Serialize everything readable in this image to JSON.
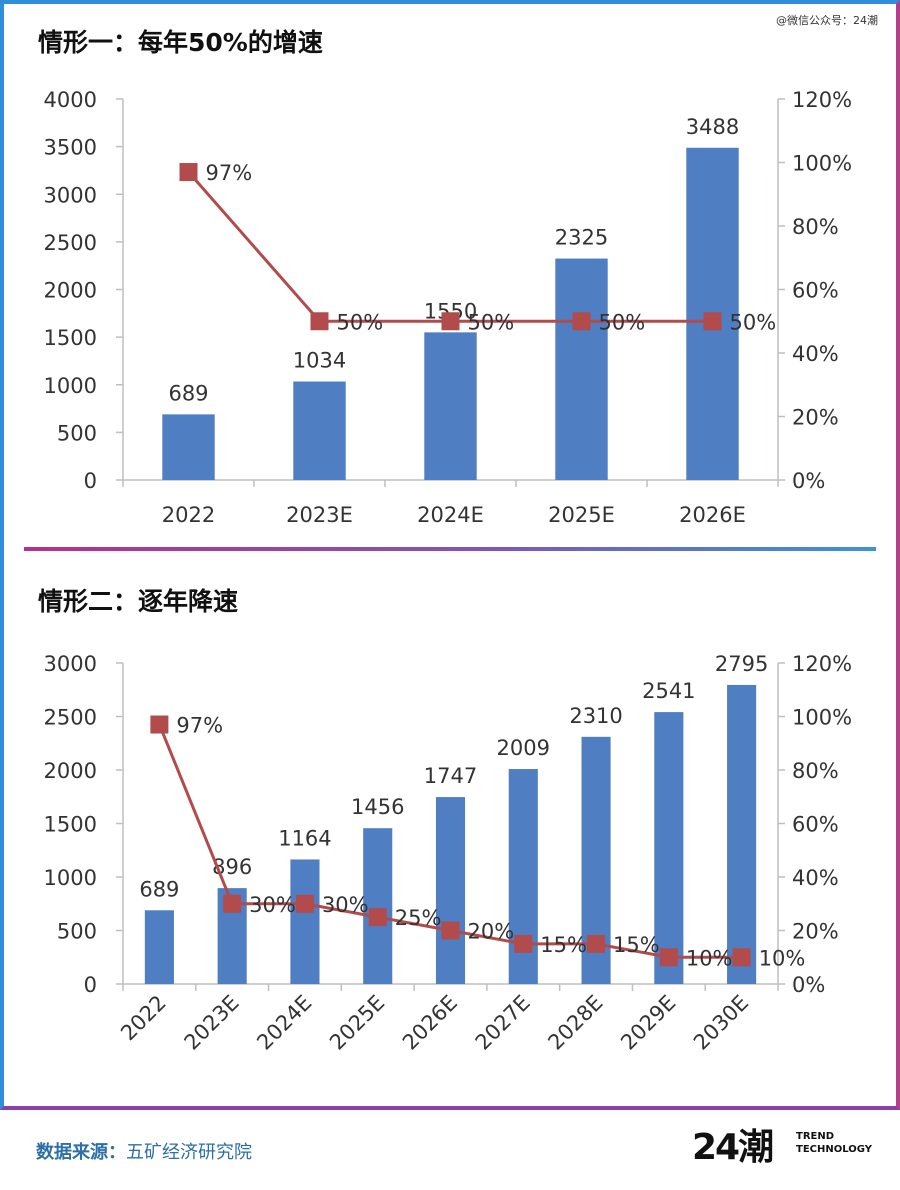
{
  "watermark": "@微信公众号：24潮",
  "footer": {
    "source_label": "数据来源：",
    "source_value": "五矿经济研究院",
    "logo_mark": "24潮",
    "logo_line1": "TREND",
    "logo_line2": "TECHNOLOGY"
  },
  "chart_data": [
    {
      "type": "bar",
      "title": "情形一：每年50%的增速",
      "categories": [
        "2022",
        "2023E",
        "2024E",
        "2025E",
        "2026E"
      ],
      "series": [
        {
          "values": [
            689,
            1034,
            1550,
            2325,
            3488
          ],
          "value_labels": [
            "689",
            "1034",
            "1550",
            "2325",
            "3488"
          ],
          "color": "#4f7ec2",
          "axis": "left"
        },
        {
          "type": "line",
          "values": [
            97,
            50,
            50,
            50,
            50
          ],
          "value_labels": [
            "97%",
            "50%",
            "50%",
            "50%",
            "50%"
          ],
          "color": "#b24b4b",
          "axis": "right"
        }
      ],
      "ylim": [
        0,
        4000
      ],
      "yticks": [
        "0",
        "500",
        "1000",
        "1500",
        "2000",
        "2500",
        "3000",
        "3500",
        "4000"
      ],
      "y2lim": [
        0,
        120
      ],
      "y2ticks": [
        "0%",
        "20%",
        "40%",
        "60%",
        "80%",
        "100%",
        "120%"
      ],
      "grid": false
    },
    {
      "type": "bar",
      "title": "情形二：逐年降速",
      "categories": [
        "2022",
        "2023E",
        "2024E",
        "2025E",
        "2026E",
        "2027E",
        "2028E",
        "2029E",
        "2030E"
      ],
      "series": [
        {
          "values": [
            689,
            896,
            1164,
            1456,
            1747,
            2009,
            2310,
            2541,
            2795
          ],
          "value_labels": [
            "689",
            "896",
            "1164",
            "1456",
            "1747",
            "2009",
            "2310",
            "2541",
            "2795"
          ],
          "color": "#4f7ec2",
          "axis": "left"
        },
        {
          "type": "line",
          "values": [
            97,
            30,
            30,
            25,
            20,
            15,
            15,
            10,
            10
          ],
          "value_labels": [
            "97%",
            "30%",
            "30%",
            "25%",
            "20%",
            "15%",
            "15%",
            "10%",
            "10%"
          ],
          "color": "#b24b4b",
          "axis": "right"
        }
      ],
      "ylim": [
        0,
        3000
      ],
      "yticks": [
        "0",
        "500",
        "1000",
        "1500",
        "2000",
        "2500",
        "3000"
      ],
      "y2lim": [
        0,
        120
      ],
      "y2ticks": [
        "0%",
        "20%",
        "40%",
        "60%",
        "80%",
        "100%",
        "120%"
      ],
      "grid": false
    }
  ]
}
